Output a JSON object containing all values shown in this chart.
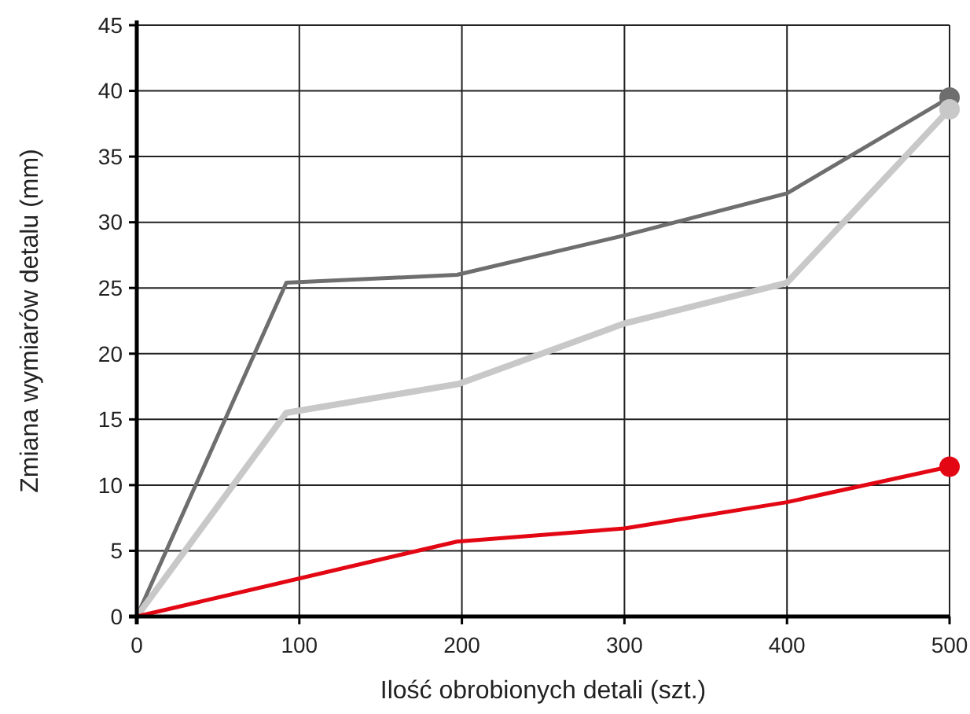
{
  "chart_data": {
    "type": "line",
    "xlabel": "Ilość obrobionych detali (szt.)",
    "ylabel": "Zmiana wymiarów detalu (mm)",
    "xlim": [
      0,
      500
    ],
    "xticks": [
      0,
      100,
      200,
      300,
      400,
      500
    ],
    "ylim": [
      0,
      45
    ],
    "yticks": [
      0,
      5,
      10,
      15,
      20,
      25,
      30,
      35,
      40,
      45
    ],
    "grid": true,
    "series": [
      {
        "color": "#6e6e6e",
        "x": [
          0,
          92,
          197,
          300,
          400,
          500
        ],
        "values": [
          0,
          25.4,
          26.0,
          29.0,
          32.2,
          39.5
        ]
      },
      {
        "color": "#c8c8c8",
        "x": [
          0,
          92,
          198,
          300,
          400,
          500
        ],
        "values": [
          0,
          15.5,
          17.7,
          22.3,
          25.4,
          38.6
        ]
      },
      {
        "color": "#e30613",
        "x": [
          0,
          197,
          300,
          400,
          500
        ],
        "values": [
          0,
          5.7,
          6.7,
          8.7,
          11.4
        ]
      },
      {
        "type": "scatter",
        "marker": "circle",
        "color": "#6e6e6e",
        "x": [
          500
        ],
        "values": [
          39.5
        ]
      },
      {
        "type": "scatter",
        "marker": "circle",
        "color": "#c8c8c8",
        "x": [
          500
        ],
        "values": [
          38.6
        ]
      },
      {
        "type": "scatter",
        "marker": "circle",
        "color": "#e30613",
        "x": [
          500
        ],
        "values": [
          11.4
        ]
      }
    ]
  }
}
